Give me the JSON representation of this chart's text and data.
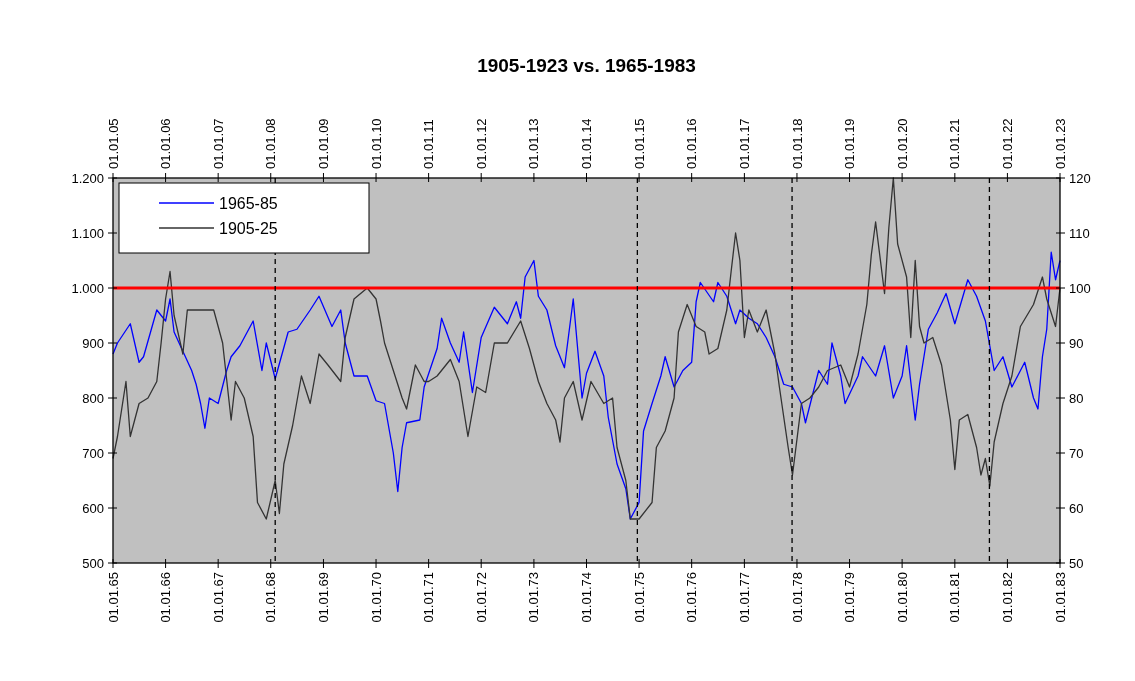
{
  "chart_data": {
    "type": "line",
    "title": "1905-1923 vs. 1965-1983",
    "xlim": [
      "1965-01-01",
      "1983-01-01"
    ],
    "xticks": [
      {
        "value": "1965-01-01",
        "label": "01.01.65"
      },
      {
        "value": "1966-01-01",
        "label": "01.01.66"
      },
      {
        "value": "1967-01-01",
        "label": "01.01.67"
      },
      {
        "value": "1968-01-01",
        "label": "01.01.68"
      },
      {
        "value": "1969-01-01",
        "label": "01.01.69"
      },
      {
        "value": "1970-01-01",
        "label": "01.01.70"
      },
      {
        "value": "1971-01-01",
        "label": "01.01.71"
      },
      {
        "value": "1972-01-01",
        "label": "01.01.72"
      },
      {
        "value": "1973-01-01",
        "label": "01.01.73"
      },
      {
        "value": "1974-01-01",
        "label": "01.01.74"
      },
      {
        "value": "1975-01-01",
        "label": "01.01.75"
      },
      {
        "value": "1976-01-01",
        "label": "01.01.76"
      },
      {
        "value": "1977-01-01",
        "label": "01.01.77"
      },
      {
        "value": "1978-01-01",
        "label": "01.01.78"
      },
      {
        "value": "1979-01-01",
        "label": "01.01.79"
      },
      {
        "value": "1980-01-01",
        "label": "01.01.80"
      },
      {
        "value": "1981-01-01",
        "label": "01.01.81"
      },
      {
        "value": "1982-01-01",
        "label": "01.01.82"
      },
      {
        "value": "1983-01-01",
        "label": "01.01.83"
      }
    ],
    "x2lim": [
      "1905-01-01",
      "1923-01-01"
    ],
    "x2ticks": [
      {
        "value": "1905-01-01",
        "label": "01.01.05"
      },
      {
        "value": "1906-01-01",
        "label": "01.01.06"
      },
      {
        "value": "1907-01-01",
        "label": "01.01.07"
      },
      {
        "value": "1908-01-01",
        "label": "01.01.08"
      },
      {
        "value": "1909-01-01",
        "label": "01.01.09"
      },
      {
        "value": "1910-01-01",
        "label": "01.01.10"
      },
      {
        "value": "1911-01-01",
        "label": "01.01.11"
      },
      {
        "value": "1912-01-01",
        "label": "01.01.12"
      },
      {
        "value": "1913-01-01",
        "label": "01.01.13"
      },
      {
        "value": "1914-01-01",
        "label": "01.01.14"
      },
      {
        "value": "1915-01-01",
        "label": "01.01.15"
      },
      {
        "value": "1916-01-01",
        "label": "01.01.16"
      },
      {
        "value": "1917-01-01",
        "label": "01.01.17"
      },
      {
        "value": "1918-01-01",
        "label": "01.01.18"
      },
      {
        "value": "1919-01-01",
        "label": "01.01.19"
      },
      {
        "value": "1920-01-01",
        "label": "01.01.20"
      },
      {
        "value": "1921-01-01",
        "label": "01.01.21"
      },
      {
        "value": "1922-01-01",
        "label": "01.01.22"
      },
      {
        "value": "1923-01-01",
        "label": "01.01.23"
      }
    ],
    "ylim": [
      500,
      1200
    ],
    "yticks": [
      500,
      600,
      700,
      800,
      900,
      {
        "value": 1000,
        "label": "1.000"
      },
      {
        "value": 1100,
        "label": "1.100"
      },
      {
        "value": 1200,
        "label": "1.200"
      }
    ],
    "y2lim": [
      50,
      120
    ],
    "y2ticks": [
      50,
      60,
      70,
      80,
      90,
      100,
      110,
      120
    ],
    "grid": false,
    "legend": "top left",
    "marker": "none",
    "line_style": "solid",
    "ref_lines": [
      {
        "axis": "y",
        "value": 1000,
        "color": "#ff0000",
        "line_style": "solid"
      },
      {
        "axis": "x",
        "value": "1968-02-01",
        "color": "#000000",
        "line_style": "dashed"
      },
      {
        "axis": "x",
        "value": "1974-12-20",
        "color": "#000000",
        "line_style": "dashed"
      },
      {
        "axis": "x",
        "value": "1977-11-28",
        "color": "#000000",
        "line_style": "dashed"
      },
      {
        "axis": "x",
        "value": "1981-08-29",
        "color": "#000000",
        "line_style": "dashed"
      }
    ],
    "series": [
      {
        "name": "1965-85",
        "color": "#0000ff",
        "x": [
          "1965-01",
          "1965-02",
          "1965-05",
          "1965-07",
          "1965-08",
          "1965-11",
          "1966-01",
          "1966-02",
          "1966-03",
          "1966-05",
          "1966-07",
          "1966-08",
          "1966-09",
          "1966-10",
          "1966-11",
          "1967-01",
          "1967-03",
          "1967-04",
          "1967-06",
          "1967-09",
          "1967-11",
          "1967-12",
          "1968-02",
          "1968-05",
          "1968-07",
          "1968-10",
          "1968-12",
          "1969-03",
          "1969-05",
          "1969-06",
          "1969-08",
          "1969-11",
          "1970-01",
          "1970-03",
          "1970-05",
          "1970-06",
          "1970-07",
          "1970-08",
          "1970-11",
          "1970-12",
          "1971-03",
          "1971-04",
          "1971-06",
          "1971-08",
          "1971-09",
          "1971-11",
          "1972-01",
          "1972-04",
          "1972-07",
          "1972-09",
          "1972-10",
          "1972-11",
          "1973-01",
          "1973-02",
          "1973-04",
          "1973-06",
          "1973-08",
          "1973-10",
          "1973-12",
          "1974-01",
          "1974-03",
          "1974-05",
          "1974-06",
          "1974-08",
          "1974-10",
          "1974-11",
          "1975-01",
          "1975-02",
          "1975-04",
          "1975-06",
          "1975-07",
          "1975-09",
          "1975-11",
          "1976-01",
          "1976-02",
          "1976-03",
          "1976-06",
          "1976-07",
          "1976-09",
          "1976-11",
          "1976-12",
          "1977-02",
          "1977-04",
          "1977-06",
          "1977-08",
          "1977-10",
          "1977-12",
          "1978-02",
          "1978-03",
          "1978-06",
          "1978-08",
          "1978-09",
          "1978-11",
          "1978-12",
          "1979-03",
          "1979-04",
          "1979-07",
          "1979-09",
          "1979-11",
          "1980-01",
          "1980-02",
          "1980-04",
          "1980-05",
          "1980-07",
          "1980-09",
          "1980-11",
          "1981-01",
          "1981-04",
          "1981-06",
          "1981-08",
          "1981-10",
          "1981-12",
          "1982-02",
          "1982-05",
          "1982-07",
          "1982-08",
          "1982-09",
          "1982-10",
          "1982-11",
          "1982-12",
          "1983-01"
        ],
        "values": [
          880,
          900,
          935,
          865,
          875,
          960,
          940,
          980,
          920,
          885,
          850,
          825,
          790,
          745,
          800,
          790,
          850,
          875,
          895,
          940,
          850,
          900,
          835,
          920,
          925,
          960,
          985,
          930,
          960,
          900,
          840,
          840,
          795,
          790,
          700,
          630,
          710,
          755,
          760,
          820,
          890,
          945,
          900,
          865,
          920,
          810,
          910,
          965,
          935,
          975,
          945,
          1020,
          1050,
          985,
          960,
          895,
          855,
          980,
          800,
          845,
          885,
          840,
          765,
          680,
          635,
          580,
          610,
          740,
          790,
          840,
          875,
          820,
          850,
          865,
          975,
          1010,
          975,
          1010,
          985,
          935,
          960,
          945,
          935,
          910,
          875,
          825,
          820,
          790,
          755,
          850,
          825,
          900,
          840,
          790,
          840,
          875,
          840,
          895,
          800,
          840,
          895,
          760,
          825,
          925,
          955,
          990,
          935,
          1015,
          985,
          940,
          850,
          875,
          820,
          865,
          800,
          780,
          875,
          925,
          1065,
          1015,
          1050
        ]
      },
      {
        "name": "1905-25",
        "color": "#333333",
        "axis": "y2",
        "x": [
          "1965-01",
          "1965-02",
          "1965-04",
          "1965-05",
          "1965-07",
          "1965-09",
          "1965-11",
          "1965-12",
          "1966-01",
          "1966-02",
          "1966-03",
          "1966-05",
          "1966-06",
          "1966-09",
          "1966-12",
          "1967-02",
          "1967-04",
          "1967-05",
          "1967-07",
          "1967-09",
          "1967-10",
          "1967-12",
          "1968-02",
          "1968-03",
          "1968-04",
          "1968-06",
          "1968-08",
          "1968-10",
          "1968-12",
          "1969-02",
          "1969-05",
          "1969-06",
          "1969-08",
          "1969-11",
          "1970-01",
          "1970-02",
          "1970-03",
          "1970-05",
          "1970-07",
          "1970-08",
          "1970-10",
          "1970-12",
          "1971-01",
          "1971-03",
          "1971-06",
          "1971-08",
          "1971-10",
          "1971-12",
          "1972-02",
          "1972-04",
          "1972-07",
          "1972-10",
          "1972-12",
          "1973-02",
          "1973-04",
          "1973-06",
          "1973-07",
          "1973-08",
          "1973-10",
          "1973-12",
          "1974-02",
          "1974-05",
          "1974-07",
          "1974-08",
          "1974-10",
          "1974-11",
          "1975-01",
          "1975-04",
          "1975-05",
          "1975-07",
          "1975-09",
          "1975-10",
          "1975-12",
          "1976-02",
          "1976-04",
          "1976-05",
          "1976-07",
          "1976-09",
          "1976-10",
          "1976-11",
          "1976-12",
          "1977-01",
          "1977-02",
          "1977-04",
          "1977-06",
          "1977-08",
          "1977-09",
          "1977-11",
          "1977-12",
          "1978-02",
          "1978-04",
          "1978-06",
          "1978-08",
          "1978-11",
          "1979-01",
          "1979-03",
          "1979-05",
          "1979-06",
          "1979-07",
          "1979-09",
          "1979-10",
          "1979-11",
          "1979-12",
          "1980-02",
          "1980-03",
          "1980-04",
          "1980-05",
          "1980-06",
          "1980-08",
          "1980-10",
          "1980-12",
          "1981-01",
          "1981-02",
          "1981-04",
          "1981-06",
          "1981-07",
          "1981-08",
          "1981-09",
          "1981-10",
          "1981-12",
          "1982-02",
          "1982-04",
          "1982-07",
          "1982-09",
          "1982-10",
          "1982-12",
          "1983-01"
        ],
        "values": [
          69,
          73,
          83,
          73,
          79,
          80,
          83,
          90,
          98,
          103,
          95,
          88,
          96,
          96,
          96,
          90,
          76,
          83,
          80,
          73,
          61,
          58,
          65,
          59,
          68,
          75,
          84,
          79,
          88,
          86,
          83,
          91,
          98,
          100,
          98,
          94,
          90,
          85,
          80,
          78,
          86,
          83,
          83,
          84,
          87,
          83,
          73,
          82,
          81,
          90,
          90,
          94,
          89,
          83,
          79,
          76,
          72,
          80,
          83,
          76,
          83,
          79,
          80,
          71,
          65,
          58,
          58,
          61,
          71,
          74,
          80,
          92,
          97,
          93,
          92,
          88,
          89,
          96,
          103,
          110,
          105,
          91,
          96,
          92,
          96,
          88,
          82,
          71,
          66,
          79,
          80,
          82,
          85,
          86,
          82,
          88,
          97,
          106,
          112,
          99,
          111,
          120,
          108,
          102,
          91,
          105,
          93,
          90,
          91,
          86,
          76,
          67,
          76,
          77,
          71,
          66,
          69,
          64,
          72,
          79,
          84,
          93,
          97,
          102,
          98,
          93,
          100
        ]
      }
    ]
  }
}
